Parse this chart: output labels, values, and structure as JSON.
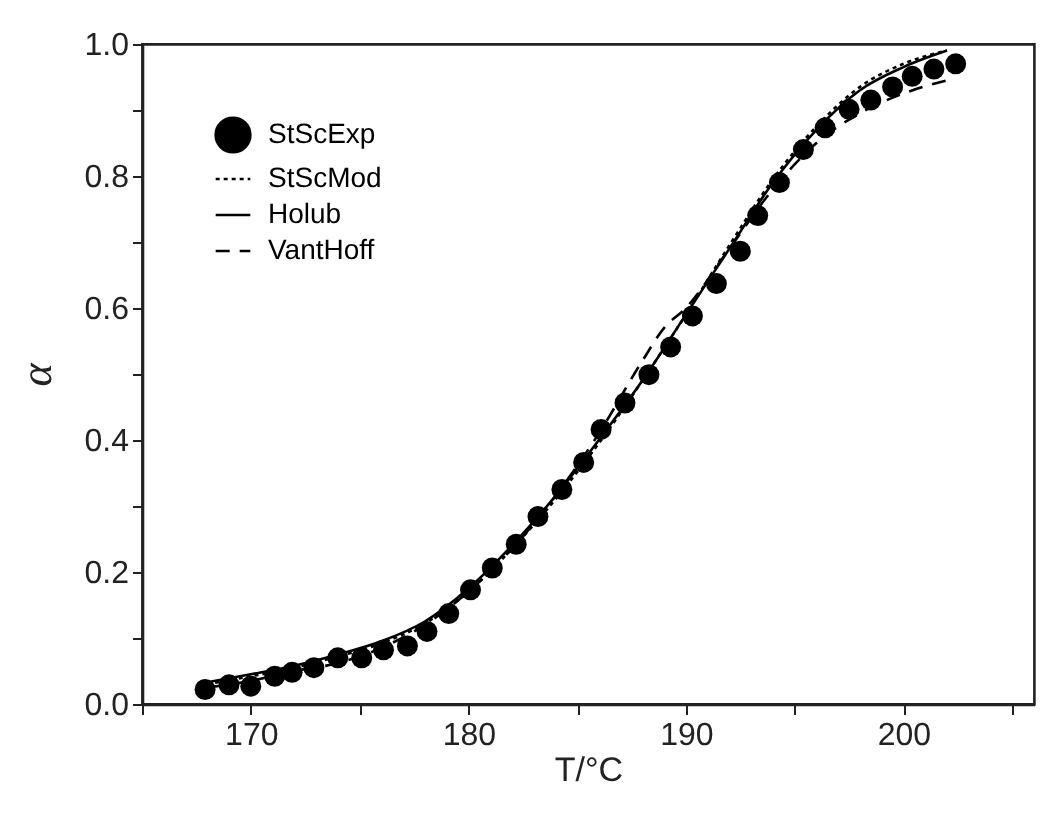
{
  "chart_data": {
    "type": "line",
    "xlabel": "T/°C",
    "ylabel": "α",
    "xlim": [
      165,
      206
    ],
    "ylim": [
      0,
      1
    ],
    "xticks": [
      {
        "value": 165,
        "label": null
      },
      170,
      {
        "value": 175,
        "label": null
      },
      180,
      {
        "value": 185,
        "label": null
      },
      190,
      {
        "value": 195,
        "label": null
      },
      200,
      {
        "value": 205,
        "label": null
      }
    ],
    "yticks": [
      {
        "value": 0,
        "label": "0.0"
      },
      {
        "value": 0.1,
        "label": null
      },
      {
        "value": 0.2,
        "label": "0.2"
      },
      {
        "value": 0.3,
        "label": null
      },
      {
        "value": 0.4,
        "label": "0.4"
      },
      {
        "value": 0.5,
        "label": null
      },
      {
        "value": 0.6,
        "label": "0.6"
      },
      {
        "value": 0.7,
        "label": null
      },
      {
        "value": 0.8,
        "label": "0.8"
      },
      {
        "value": 0.9,
        "label": null
      },
      {
        "value": 1,
        "label": "1.0"
      }
    ],
    "grid": false,
    "legend": "top left",
    "series": [
      {
        "name": "StScExp",
        "type": "scatter",
        "marker": "circle",
        "color": "#000000",
        "x": [
          167.9,
          169,
          170,
          171.1,
          171.9,
          172.9,
          174,
          175.1,
          176.1,
          177.2,
          178.1,
          179.1,
          180.1,
          181.1,
          182.2,
          183.2,
          184.3,
          185.3,
          186.1,
          187.2,
          188.3,
          189.3,
          190.3,
          191.4,
          192.5,
          193.3,
          194.3,
          195.4,
          196.4,
          197.5,
          198.5,
          199.5,
          200.4,
          201.4,
          202.4
        ],
        "values": [
          0.022,
          0.029,
          0.027,
          0.042,
          0.048,
          0.055,
          0.07,
          0.07,
          0.082,
          0.088,
          0.11,
          0.137,
          0.173,
          0.206,
          0.242,
          0.284,
          0.325,
          0.366,
          0.416,
          0.456,
          0.499,
          0.541,
          0.588,
          0.637,
          0.686,
          0.74,
          0.79,
          0.84,
          0.873,
          0.901,
          0.915,
          0.935,
          0.951,
          0.962,
          0.97
        ]
      },
      {
        "name": "StScMod",
        "line_style": "dotted",
        "color": "#000000",
        "x": [
          168,
          170,
          172,
          174,
          176,
          178,
          180,
          182,
          184,
          186,
          188,
          190,
          192,
          194,
          196,
          198,
          200,
          202
        ],
        "values": [
          0.03,
          0.042,
          0.055,
          0.072,
          0.092,
          0.122,
          0.17,
          0.235,
          0.31,
          0.395,
          0.49,
          0.59,
          0.695,
          0.795,
          0.875,
          0.935,
          0.97,
          0.99
        ]
      },
      {
        "name": "Holub",
        "line_style": "solid",
        "color": "#000000",
        "x": [
          168,
          170,
          172,
          174,
          176,
          178,
          180,
          182,
          184,
          186,
          188,
          190,
          192,
          194,
          196,
          198,
          200,
          202
        ],
        "values": [
          0.033,
          0.045,
          0.058,
          0.075,
          0.095,
          0.125,
          0.175,
          0.24,
          0.315,
          0.4,
          0.49,
          0.59,
          0.69,
          0.79,
          0.87,
          0.93,
          0.965,
          0.99
        ]
      },
      {
        "name": "VantHoff",
        "line_style": "dashed",
        "color": "#000000",
        "x": [
          168,
          170,
          172,
          174,
          176,
          178,
          180,
          182,
          184,
          186,
          188,
          189,
          190,
          192,
          194,
          196,
          198,
          200,
          202
        ],
        "values": [
          0.025,
          0.035,
          0.05,
          0.062,
          0.085,
          0.12,
          0.17,
          0.235,
          0.315,
          0.41,
          0.52,
          0.57,
          0.6,
          0.69,
          0.78,
          0.85,
          0.895,
          0.925,
          0.945
        ]
      }
    ]
  }
}
